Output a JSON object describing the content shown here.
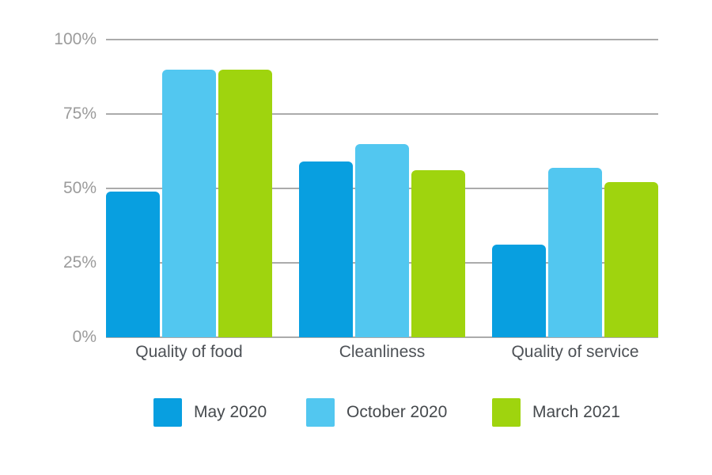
{
  "chart_data": {
    "type": "bar",
    "title": "",
    "categories": [
      "Quality of food",
      "Cleanliness",
      "Quality of service"
    ],
    "series": [
      {
        "name": "May 2020",
        "color": "#089fe0",
        "values": [
          49,
          59,
          31
        ]
      },
      {
        "name": "October 2020",
        "color": "#52c7f0",
        "values": [
          90,
          65,
          57
        ]
      },
      {
        "name": "March 2021",
        "color": "#9fd40e",
        "values": [
          90,
          56,
          52
        ]
      }
    ],
    "xlabel": "",
    "ylabel": "",
    "ylim": [
      0,
      100
    ],
    "unit": "%",
    "y_ticks": [
      "100%",
      "75%",
      "50%",
      "25%",
      "0%"
    ],
    "y_tick_order": "top-to-bottom",
    "grid": true,
    "legend_position": "bottom"
  },
  "colors": {
    "background": "#ffffff",
    "gridline": "#ababab",
    "y_tick_label": "#9b9b9b",
    "x_category_label": "#4d5156",
    "legend_label": "#45494d"
  }
}
